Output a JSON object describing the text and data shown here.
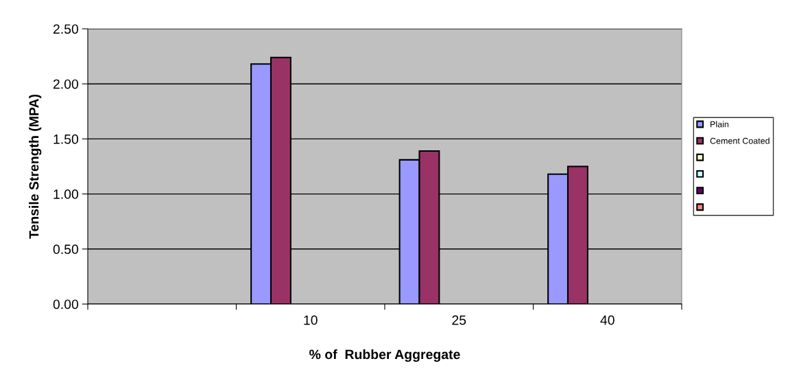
{
  "chart_data": {
    "type": "bar",
    "xlabel": "% of  Rubber Aggregate",
    "ylabel": "Tensile Strength (MPA)",
    "categories": [
      null,
      "10",
      "25",
      "40"
    ],
    "series": [
      {
        "name": "Plain",
        "color": "#9999ff",
        "values": [
          null,
          2.18,
          1.31,
          1.18
        ]
      },
      {
        "name": "Cement Coated",
        "color": "#993366",
        "values": [
          null,
          2.24,
          1.39,
          1.25
        ]
      },
      {
        "color": "#ffffcc",
        "values": [
          null,
          null,
          null,
          null
        ]
      },
      {
        "color": "#ccffff",
        "values": [
          null,
          null,
          null,
          null
        ]
      },
      {
        "color": "#660066",
        "values": [
          null,
          null,
          null,
          null
        ]
      },
      {
        "color": "#ff8080",
        "values": [
          null,
          null,
          null,
          null
        ]
      }
    ],
    "ylim": [
      0,
      2.5
    ],
    "yticks": [
      {
        "value": 0,
        "label": "0.00"
      },
      {
        "value": 0.5,
        "label": "0.50"
      },
      {
        "value": 1,
        "label": "1.00"
      },
      {
        "value": 1.5,
        "label": "1.50"
      },
      {
        "value": 2,
        "label": "2.00"
      },
      {
        "value": 2.5,
        "label": "2.50"
      }
    ],
    "grid": "y",
    "legend": "right"
  }
}
